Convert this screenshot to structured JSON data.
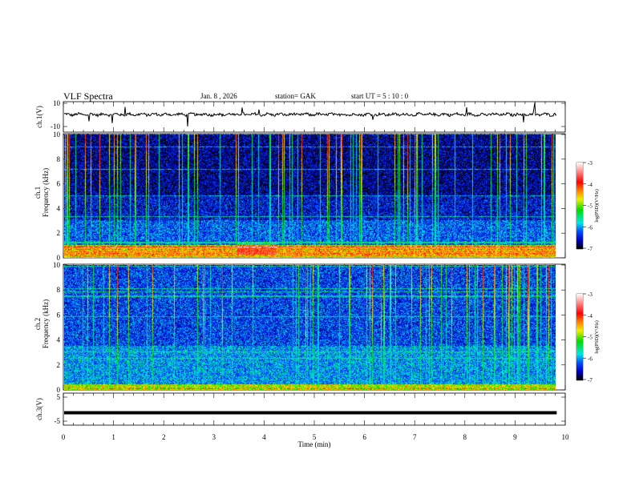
{
  "header": {
    "title": "VLF  Spectra",
    "date": "Jan.  8   , 2026",
    "station": "station= GAK",
    "start": "start  UT  =    5  : 10 : 0"
  },
  "chart_data": [
    {
      "type": "line",
      "name": "ch1-waveform",
      "ylabel": "ch.1(V)",
      "ylim": [
        -10,
        10
      ],
      "yticks": [
        "10",
        "-10"
      ],
      "note_level": 0
    },
    {
      "type": "heatmap",
      "name": "ch1-spectrogram",
      "ylabel_top": "ch.1",
      "ylabel": "Frequency  (kHz)",
      "ylim": [
        0,
        10
      ],
      "yticks": [
        "0",
        "2",
        "4",
        "6",
        "8",
        "10"
      ],
      "colorbar": {
        "label": "log(PSD)(V²/Hz)",
        "range": [
          -7,
          -3
        ],
        "ticks": [
          "-3",
          "-4",
          "-5",
          "-6",
          "-7"
        ]
      }
    },
    {
      "type": "heatmap",
      "name": "ch2-spectrogram",
      "ylabel_top": "ch.2",
      "ylabel": "Frequency  (kHz)",
      "ylim": [
        0,
        10
      ],
      "yticks": [
        "0",
        "2",
        "4",
        "6",
        "8",
        "10"
      ],
      "colorbar": {
        "label": "log(PSD)(V²/Hz)",
        "range": [
          -7,
          -3
        ],
        "ticks": [
          "-3",
          "-4",
          "-5",
          "-6",
          "-7"
        ]
      }
    },
    {
      "type": "line",
      "name": "ch3-waveform",
      "ylabel": "ch.3(V)",
      "ylim": [
        -5,
        5
      ],
      "yticks": [
        "5",
        "-5"
      ],
      "level": -1.5
    }
  ],
  "xaxis": {
    "label": "Time  (min)",
    "range": [
      0,
      10
    ],
    "data_end": 9.83,
    "ticks": [
      "0",
      "1",
      "2",
      "3",
      "4",
      "5",
      "6",
      "7",
      "8",
      "9",
      "10"
    ]
  },
  "colors": {
    "trace": "#000000"
  }
}
